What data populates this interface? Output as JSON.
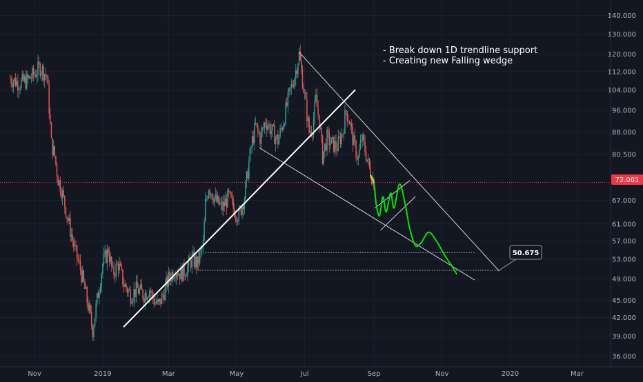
{
  "chart_data": {
    "type": "candlestick",
    "price_axis": {
      "ticks": [
        "140.000",
        "130.000",
        "120.000",
        "112.000",
        "104.000",
        "96.000",
        "88.000",
        "80.500",
        "67.000",
        "61.000",
        "57.000",
        "53.000",
        "49.000",
        "45.000",
        "42.000",
        "39.000",
        "36.000"
      ],
      "scale": "log",
      "range": [
        34.5,
        149
      ]
    },
    "time_axis": {
      "ticks": [
        "Nov",
        "2019",
        "Mar",
        "May",
        "Jul",
        "Sep",
        "Nov",
        "2020",
        "Mar"
      ]
    },
    "current_price": {
      "label": "72.001",
      "value": 72.001,
      "color": "#f23645"
    },
    "target": {
      "label": "50.675",
      "value": 50.675
    },
    "annotations": [
      "- Break down 1D trendline support",
      "- Creating new Falling wedge"
    ],
    "colors": {
      "up": "#26a69a",
      "down": "#ef5350",
      "background": "#131722",
      "projection": "#00e600",
      "projection_start": "#f2c94c"
    },
    "closes": [
      {
        "t": "2018-10-10",
        "c": 109
      },
      {
        "t": "2018-10-18",
        "c": 107
      },
      {
        "t": "2018-10-25",
        "c": 108
      },
      {
        "t": "2018-11-01",
        "c": 111
      },
      {
        "t": "2018-11-06",
        "c": 114
      },
      {
        "t": "2018-11-12",
        "c": 110
      },
      {
        "t": "2018-11-14",
        "c": 97
      },
      {
        "t": "2018-11-16",
        "c": 84
      },
      {
        "t": "2018-11-19",
        "c": 80
      },
      {
        "t": "2018-11-22",
        "c": 73
      },
      {
        "t": "2018-11-25",
        "c": 70
      },
      {
        "t": "2018-12-01",
        "c": 62
      },
      {
        "t": "2018-12-07",
        "c": 55
      },
      {
        "t": "2018-12-12",
        "c": 51
      },
      {
        "t": "2018-12-16",
        "c": 47
      },
      {
        "t": "2018-12-20",
        "c": 43
      },
      {
        "t": "2018-12-23",
        "c": 40
      },
      {
        "t": "2018-12-27",
        "c": 45
      },
      {
        "t": "2019-01-01",
        "c": 52
      },
      {
        "t": "2019-01-06",
        "c": 55
      },
      {
        "t": "2019-01-10",
        "c": 50
      },
      {
        "t": "2019-01-15",
        "c": 52
      },
      {
        "t": "2019-01-20",
        "c": 48
      },
      {
        "t": "2019-01-26",
        "c": 46
      },
      {
        "t": "2019-02-01",
        "c": 47
      },
      {
        "t": "2019-02-07",
        "c": 46
      },
      {
        "t": "2019-02-12",
        "c": 47
      },
      {
        "t": "2019-02-16",
        "c": 45
      },
      {
        "t": "2019-02-20",
        "c": 44
      },
      {
        "t": "2019-02-24",
        "c": 46
      },
      {
        "t": "2019-03-01",
        "c": 49
      },
      {
        "t": "2019-03-07",
        "c": 51
      },
      {
        "t": "2019-03-12",
        "c": 50
      },
      {
        "t": "2019-03-17",
        "c": 51
      },
      {
        "t": "2019-03-22",
        "c": 53
      },
      {
        "t": "2019-03-27",
        "c": 52
      },
      {
        "t": "2019-04-01",
        "c": 56
      },
      {
        "t": "2019-04-03",
        "c": 66
      },
      {
        "t": "2019-04-06",
        "c": 71
      },
      {
        "t": "2019-04-12",
        "c": 67
      },
      {
        "t": "2019-04-18",
        "c": 65
      },
      {
        "t": "2019-04-24",
        "c": 68
      },
      {
        "t": "2019-04-28",
        "c": 65
      },
      {
        "t": "2019-05-03",
        "c": 63
      },
      {
        "t": "2019-05-08",
        "c": 68
      },
      {
        "t": "2019-05-12",
        "c": 78
      },
      {
        "t": "2019-05-15",
        "c": 85
      },
      {
        "t": "2019-05-18",
        "c": 90
      },
      {
        "t": "2019-05-22",
        "c": 86
      },
      {
        "t": "2019-05-27",
        "c": 92
      },
      {
        "t": "2019-06-02",
        "c": 88
      },
      {
        "t": "2019-06-07",
        "c": 85
      },
      {
        "t": "2019-06-12",
        "c": 92
      },
      {
        "t": "2019-06-17",
        "c": 102
      },
      {
        "t": "2019-06-22",
        "c": 110
      },
      {
        "t": "2019-06-26",
        "c": 120
      },
      {
        "t": "2019-06-28",
        "c": 112
      },
      {
        "t": "2019-07-02",
        "c": 98
      },
      {
        "t": "2019-07-05",
        "c": 88
      },
      {
        "t": "2019-07-08",
        "c": 90
      },
      {
        "t": "2019-07-11",
        "c": 100
      },
      {
        "t": "2019-07-14",
        "c": 92
      },
      {
        "t": "2019-07-17",
        "c": 80
      },
      {
        "t": "2019-07-21",
        "c": 86
      },
      {
        "t": "2019-07-25",
        "c": 84
      },
      {
        "t": "2019-07-30",
        "c": 83
      },
      {
        "t": "2019-08-04",
        "c": 88
      },
      {
        "t": "2019-08-07",
        "c": 96
      },
      {
        "t": "2019-08-10",
        "c": 92
      },
      {
        "t": "2019-08-14",
        "c": 84
      },
      {
        "t": "2019-08-18",
        "c": 79
      },
      {
        "t": "2019-08-21",
        "c": 86
      },
      {
        "t": "2019-08-24",
        "c": 82
      },
      {
        "t": "2019-08-28",
        "c": 76
      },
      {
        "t": "2019-09-01",
        "c": 72
      }
    ],
    "trendlines": [
      {
        "from": {
          "t": "2019-01-20",
          "v": 40.5
        },
        "to": {
          "t": "2019-08-15",
          "v": 104
        }
      },
      {
        "from": {
          "t": "2019-06-26",
          "v": 121
        },
        "to": {
          "t": "2019-12-22",
          "v": 50.6
        }
      },
      {
        "from": {
          "t": "2019-05-22",
          "v": 82.5
        },
        "to": {
          "t": "2019-11-30",
          "v": 48.8
        }
      },
      {
        "from": {
          "t": "2019-09-02",
          "v": 65
        },
        "to": {
          "t": "2019-10-03",
          "v": 72.5
        }
      },
      {
        "from": {
          "t": "2019-09-07",
          "v": 59.5
        },
        "to": {
          "t": "2019-10-08",
          "v": 68
        }
      }
    ],
    "support_levels": [
      {
        "from": "2019-04-03",
        "to": "2019-11-30",
        "value": 54.4
      },
      {
        "from": "2019-03-27",
        "to": "2019-12-22",
        "value": 50.7
      }
    ],
    "projection": [
      {
        "t": "2019-08-29",
        "v": 74
      },
      {
        "t": "2019-09-01",
        "v": 72
      },
      {
        "t": "2019-09-03",
        "v": 66
      },
      {
        "t": "2019-09-06",
        "v": 63
      },
      {
        "t": "2019-09-09",
        "v": 68
      },
      {
        "t": "2019-09-12",
        "v": 64
      },
      {
        "t": "2019-09-16",
        "v": 69
      },
      {
        "t": "2019-09-19",
        "v": 65
      },
      {
        "t": "2019-09-24",
        "v": 71.5
      },
      {
        "t": "2019-09-29",
        "v": 66
      },
      {
        "t": "2019-10-03",
        "v": 60
      },
      {
        "t": "2019-10-08",
        "v": 56
      },
      {
        "t": "2019-10-13",
        "v": 56.5
      },
      {
        "t": "2019-10-20",
        "v": 59
      },
      {
        "t": "2019-10-27",
        "v": 57
      },
      {
        "t": "2019-11-03",
        "v": 54
      },
      {
        "t": "2019-11-10",
        "v": 51.5
      },
      {
        "t": "2019-11-14",
        "v": 50
      }
    ]
  }
}
